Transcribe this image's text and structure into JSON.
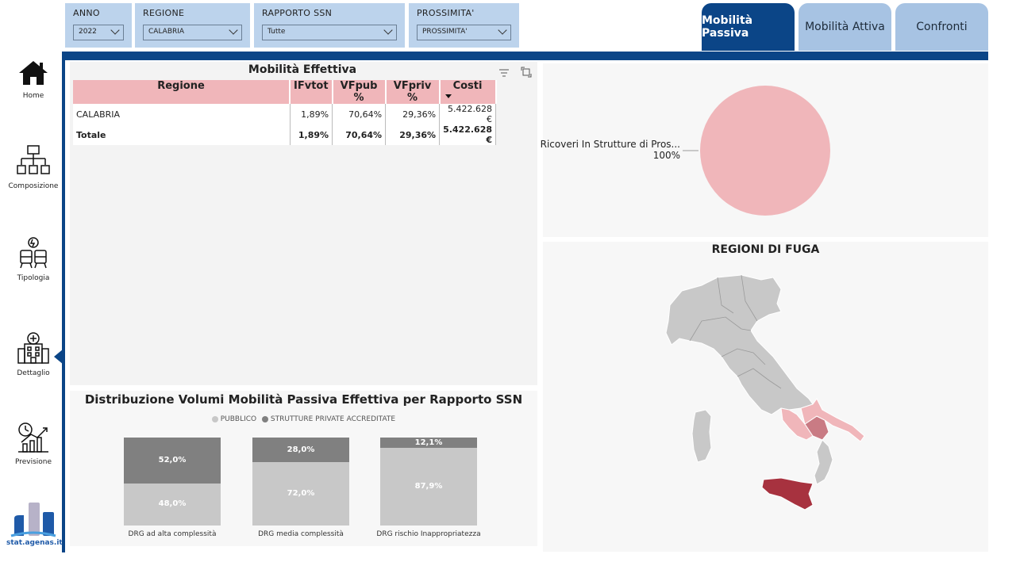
{
  "filters": [
    {
      "label": "ANNO",
      "value": "2022"
    },
    {
      "label": "REGIONE",
      "value": "CALABRIA"
    },
    {
      "label": "RAPPORTO SSN",
      "value": "Tutte"
    },
    {
      "label": "PROSSIMITA'",
      "value": "PROSSIMITA'"
    }
  ],
  "tabs": [
    "Mobilità Passiva",
    "Mobilità Attiva",
    "Confronti"
  ],
  "nav": [
    "Home",
    "Composizione",
    "Tipologia",
    "Dettaglio",
    "Previsione"
  ],
  "logo_text": "stat.agenas.it",
  "table": {
    "title": "Mobilità Effettiva",
    "headers": [
      "Regione",
      "IFvtot",
      "VFpub %",
      "VFpriv %",
      "Costi"
    ],
    "rows": [
      [
        "CALABRIA",
        "1,89%",
        "70,64%",
        "29,36%",
        "5.422.628 €"
      ],
      [
        "Totale",
        "1,89%",
        "70,64%",
        "29,36%",
        "5.422.628 €"
      ]
    ]
  },
  "pie": {
    "label": "Ricoveri In Strutture di Pros...",
    "pct": "100%",
    "color": "#f0b6ba"
  },
  "map": {
    "title": "REGIONI DI FUGA",
    "base_color": "#c8c8c8",
    "light_color": "#f0b6ba",
    "mid_color": "#c97b84",
    "dark_color": "#a7323f"
  },
  "chart_data": {
    "type": "bar",
    "title": "Distribuzione Volumi Mobilità Passiva Effettiva per Rapporto SSN",
    "categories": [
      "DRG ad alta complessità",
      "DRG media complessità",
      "DRG rischio Inappropriatezza"
    ],
    "series": [
      {
        "name": "PUBBLICO",
        "values": [
          48.0,
          72.0,
          87.9
        ],
        "labels": [
          "48,0%",
          "72,0%",
          "87,9%"
        ],
        "color": "#c8c8c8"
      },
      {
        "name": "STRUTTURE PRIVATE ACCREDITATE",
        "values": [
          52.0,
          28.0,
          12.1
        ],
        "labels": [
          "52,0%",
          "28,0%",
          "12,1%"
        ],
        "color": "#808080"
      }
    ],
    "stacked": true,
    "ylim": [
      0,
      100
    ],
    "legend": "top"
  }
}
